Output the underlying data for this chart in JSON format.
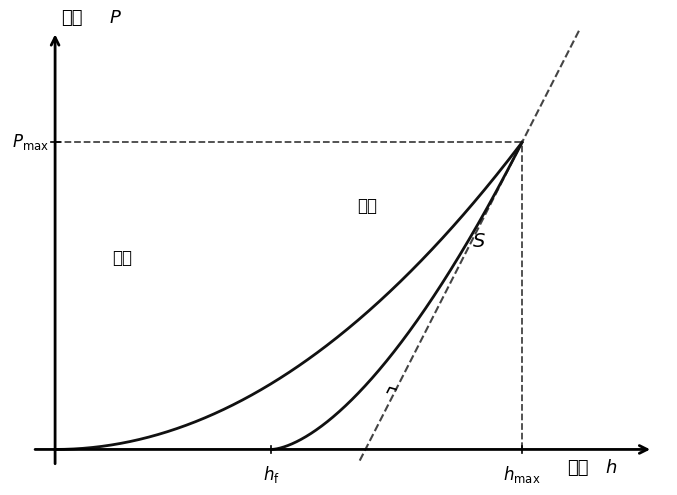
{
  "hmax": 0.82,
  "pmax": 0.72,
  "hf": 0.38,
  "bg_color": "#ffffff",
  "curve_color": "#111111",
  "dashed_color": "#444444",
  "font_size_axis": 13,
  "font_size_label": 12,
  "font_size_tick": 12,
  "n_load": 2.0,
  "m_unload": 1.6,
  "xlim": [
    -0.06,
    1.08
  ],
  "ylim": [
    -0.07,
    1.02
  ]
}
